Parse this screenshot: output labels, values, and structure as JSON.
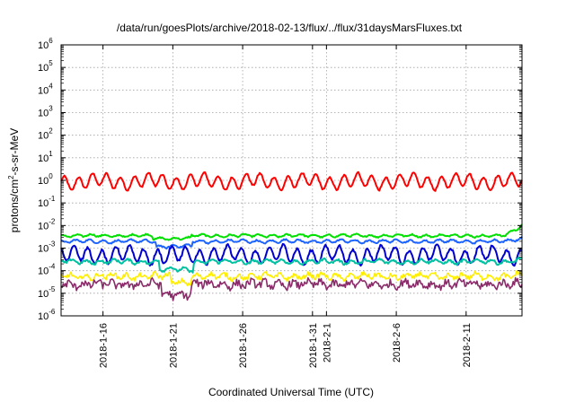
{
  "chart_data": {
    "type": "line",
    "title": "/data/run/goesPlots/archive/2018-02-13/flux/../flux/31daysMarsFluxes.txt",
    "xlabel": "Coordinated Universal Time (UTC)",
    "ylabel_parts": {
      "base": "protons/cm",
      "sup": "2",
      "rest": "-s-sr-MeV"
    },
    "yscale": "log",
    "ylim": [
      1e-06,
      1000000.0
    ],
    "xlim": [
      13.0,
      46.0
    ],
    "y_ticks": [
      {
        "exp": -6,
        "base": "10",
        "sup": "-6"
      },
      {
        "exp": -5,
        "base": "10",
        "sup": "-5"
      },
      {
        "exp": -4,
        "base": "10",
        "sup": "-4"
      },
      {
        "exp": -3,
        "base": "10",
        "sup": "-3"
      },
      {
        "exp": -2,
        "base": "10",
        "sup": "-2"
      },
      {
        "exp": -1,
        "base": "10",
        "sup": "-1"
      },
      {
        "exp": 0,
        "base": "10",
        "sup": "0"
      },
      {
        "exp": 1,
        "base": "10",
        "sup": "1"
      },
      {
        "exp": 2,
        "base": "10",
        "sup": "2"
      },
      {
        "exp": 3,
        "base": "10",
        "sup": "3"
      },
      {
        "exp": 4,
        "base": "10",
        "sup": "4"
      },
      {
        "exp": 5,
        "base": "10",
        "sup": "5"
      },
      {
        "exp": 6,
        "base": "10",
        "sup": "6"
      }
    ],
    "x_ticks": [
      {
        "x": 16,
        "label": "2018-1-16"
      },
      {
        "x": 21,
        "label": "2018-1-21"
      },
      {
        "x": 26,
        "label": "2018-1-26"
      },
      {
        "x": 31,
        "label": "2018-1-31"
      },
      {
        "x": 32,
        "label": "2018-2-1"
      },
      {
        "x": 37,
        "label": "2018-2-6"
      },
      {
        "x": 42,
        "label": "2018-2-11"
      }
    ],
    "grid": true,
    "series": [
      {
        "color": "#ff0000",
        "base_log": -0.05,
        "amp": 0.28,
        "period": 1.0,
        "noise": 0.04,
        "thin": false,
        "dip": null
      },
      {
        "color": "#00e000",
        "base_log": -2.45,
        "amp": 0.05,
        "period": 1.0,
        "noise": 0.03,
        "thin": false,
        "dip": {
          "from": 19.6,
          "to": 22.3,
          "delta": -0.12
        },
        "end_rise": 0.45
      },
      {
        "color": "#1e64ff",
        "base_log": -2.7,
        "amp": 0.06,
        "period": 1.0,
        "noise": 0.03,
        "thin": false,
        "dip": {
          "from": 19.8,
          "to": 22.4,
          "delta": -0.22
        },
        "end_rise": 0.15
      },
      {
        "color": "#0000d0",
        "base_log": -3.3,
        "amp": 0.32,
        "period": 1.0,
        "noise": 0.06,
        "thin": false,
        "dip": {
          "from": 20.2,
          "to": 22.3,
          "delta": -0.05
        },
        "end_rise": 0.0
      },
      {
        "color": "#00c0a0",
        "base_log": -3.6,
        "amp": 0.08,
        "period": 1.0,
        "noise": 0.05,
        "thin": false,
        "dip": {
          "from": 20.0,
          "to": 22.5,
          "delta": -0.35
        },
        "end_rise": 0.1
      },
      {
        "color": "#ffee00",
        "base_log": -4.25,
        "amp": 0.1,
        "period": 1.0,
        "noise": 0.1,
        "thin": true,
        "dip": {
          "from": 20.8,
          "to": 22.3,
          "delta": -0.25
        },
        "end_rise": 0.05
      },
      {
        "color": "#8b2c6a",
        "base_log": -4.6,
        "amp": 0.1,
        "period": 1.0,
        "noise": 0.16,
        "thin": true,
        "dip": {
          "from": 20.2,
          "to": 22.3,
          "delta": -0.45
        },
        "end_rise": 0.0
      }
    ]
  }
}
